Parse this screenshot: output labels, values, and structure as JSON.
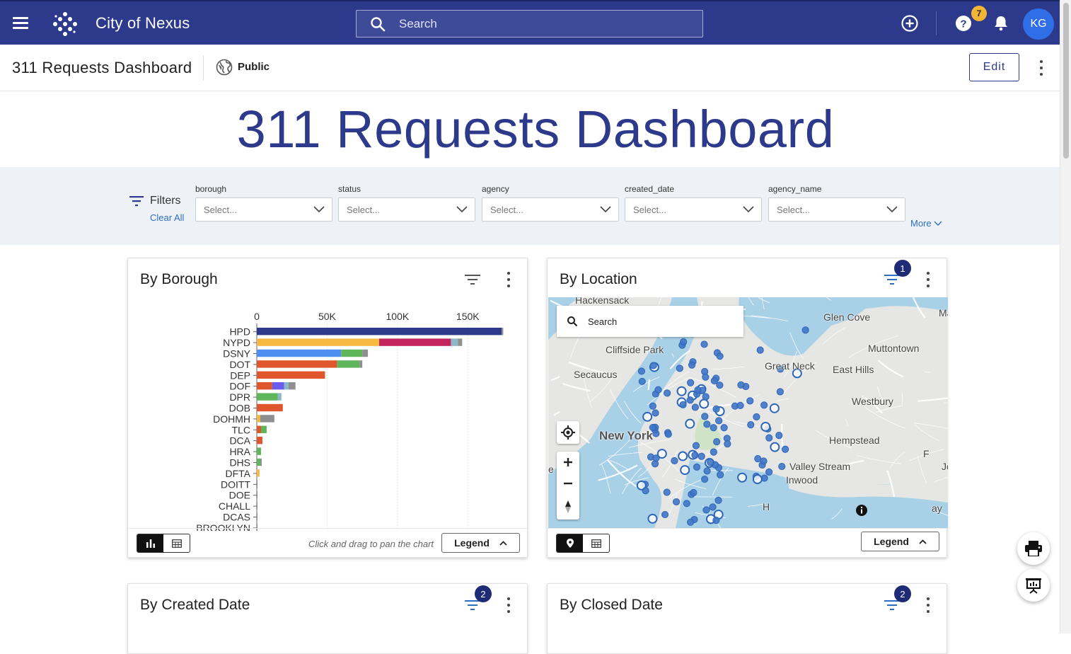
{
  "app": {
    "title": "City of Nexus",
    "search_placeholder": "Search",
    "notifications_badge": "7",
    "avatar_initials": "KG"
  },
  "dashboard": {
    "title": "311 Requests Dashboard",
    "visibility": "Public",
    "edit_label": "Edit",
    "heading": "311 Requests Dashboard"
  },
  "filters": {
    "label": "Filters",
    "clear_all": "Clear All",
    "more": "More",
    "fields": [
      {
        "label": "borough",
        "placeholder": "Select..."
      },
      {
        "label": "status",
        "placeholder": "Select..."
      },
      {
        "label": "agency",
        "placeholder": "Select..."
      },
      {
        "label": "created_date",
        "placeholder": "Select..."
      },
      {
        "label": "agency_name",
        "placeholder": "Select..."
      }
    ]
  },
  "cards": {
    "borough": {
      "title": "By Borough",
      "hint": "Click and drag to pan the chart",
      "legend_label": "Legend"
    },
    "location": {
      "title": "By Location",
      "filter_badge": "1",
      "search_placeholder": "Search",
      "legend_label": "Legend",
      "place_labels": [
        "Hackensack",
        "Glen Cove",
        "Cliffside Park",
        "Muttontown",
        "Secaucus",
        "Great Neck",
        "East Hills",
        "Westbury",
        "New York",
        "Hempstead",
        "Valley Stream",
        "Inwood",
        "H",
        "Mass",
        "F",
        "Jon",
        "ay",
        "e"
      ]
    },
    "created": {
      "title": "By Created Date",
      "filter_badge": "2"
    },
    "closed": {
      "title": "By Closed Date",
      "filter_badge": "2"
    }
  },
  "chart_data": {
    "type": "bar",
    "orientation": "horizontal",
    "stacked": true,
    "xlim": [
      0,
      175000
    ],
    "xticks": [
      "0",
      "50K",
      "100K",
      "150K"
    ],
    "categories": [
      "HPD",
      "NYPD",
      "DSNY",
      "DOT",
      "DEP",
      "DOF",
      "DPR",
      "DOB",
      "DOHMH",
      "TLC",
      "DCA",
      "HRA",
      "DHS",
      "DFTA",
      "DOITT",
      "DOE",
      "CHALL",
      "DCAS",
      "BROOKLYN"
    ],
    "series": [
      {
        "color": "#2d3a8c",
        "values": [
          174000,
          0,
          0,
          0,
          0,
          0,
          0,
          0,
          0,
          0,
          0,
          0,
          0,
          0,
          0,
          0,
          0,
          0,
          0
        ]
      },
      {
        "color": "#f5b942",
        "values": [
          0,
          87000,
          0,
          0,
          0,
          0,
          0,
          0,
          2500,
          0,
          0,
          0,
          0,
          2000,
          0,
          0,
          0,
          0,
          0
        ]
      },
      {
        "color": "#c2245c",
        "values": [
          0,
          51000,
          0,
          0,
          0,
          0,
          0,
          0,
          0,
          0,
          0,
          0,
          0,
          0,
          0,
          0,
          0,
          0,
          0
        ]
      },
      {
        "color": "#4e8ef0",
        "values": [
          0,
          0,
          60000,
          0,
          0,
          0,
          0,
          0,
          0,
          0,
          0,
          0,
          0,
          0,
          0,
          0,
          0,
          0,
          0
        ]
      },
      {
        "color": "#e0562c",
        "values": [
          0,
          0,
          0,
          57000,
          48500,
          11000,
          0,
          18500,
          0,
          3000,
          4000,
          0,
          0,
          0,
          0,
          0,
          0,
          0,
          0
        ]
      },
      {
        "color": "#6b5cf0",
        "values": [
          0,
          0,
          0,
          0,
          0,
          8500,
          0,
          0,
          0,
          0,
          0,
          0,
          0,
          0,
          0,
          0,
          0,
          0,
          0
        ]
      },
      {
        "color": "#5fb55a",
        "values": [
          0,
          0,
          15000,
          16000,
          0,
          0,
          15000,
          0,
          0,
          4000,
          0,
          3000,
          2500,
          0,
          0,
          0,
          0,
          0,
          0
        ]
      },
      {
        "color": "#8ab8c9",
        "values": [
          0,
          5000,
          0,
          0,
          0,
          3000,
          2500,
          0,
          0,
          0,
          0,
          0,
          0,
          0,
          0,
          0,
          0,
          0,
          0
        ]
      },
      {
        "color": "#8f8f8f",
        "values": [
          1200,
          3000,
          4000,
          2000,
          0,
          5000,
          0,
          0,
          10000,
          0,
          0,
          0,
          1000,
          0,
          500,
          300,
          200,
          400,
          200
        ]
      }
    ]
  },
  "map_points": {
    "description": "Service request locations (approx. lon/lat offsets in map units)",
    "count": 120
  }
}
